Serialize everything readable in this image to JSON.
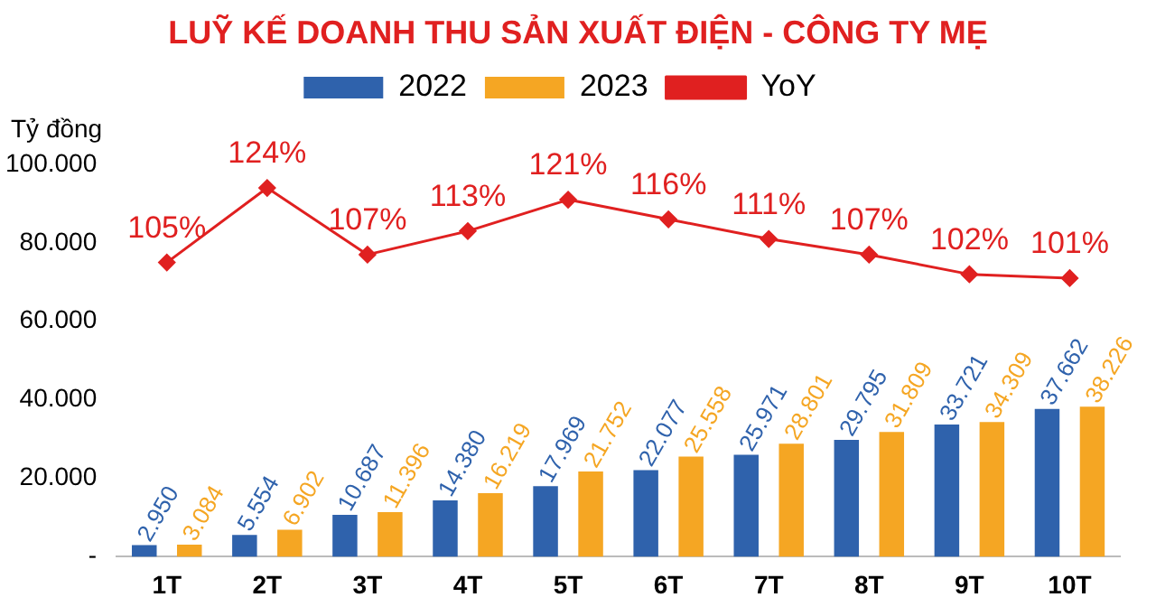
{
  "chart_data": {
    "type": "bar",
    "title": "LUỸ KẾ DOANH THU SẢN XUẤT ĐIỆN - CÔNG TY MẸ",
    "ylabel": "Tỷ đồng",
    "categories": [
      "1T",
      "2T",
      "3T",
      "4T",
      "5T",
      "6T",
      "7T",
      "8T",
      "9T",
      "10T"
    ],
    "series": [
      {
        "name": "2022",
        "color": "#2f62ac",
        "values": [
          2950,
          5554,
          10687,
          14380,
          17969,
          22077,
          25971,
          29795,
          33721,
          37662
        ],
        "value_labels": [
          "2.950",
          "5.554",
          "10.687",
          "14.380",
          "17.969",
          "22.077",
          "25.971",
          "29.795",
          "33.721",
          "37.662"
        ]
      },
      {
        "name": "2023",
        "color": "#f5a623",
        "values": [
          3084,
          6902,
          11396,
          16219,
          21752,
          25558,
          28801,
          31809,
          34309,
          38226
        ],
        "value_labels": [
          "3.084",
          "6.902",
          "11.396",
          "16.219",
          "21.752",
          "25.558",
          "28.801",
          "31.809",
          "34.309",
          "38.226"
        ]
      },
      {
        "name": "YoY",
        "type": "line",
        "axis": "y2",
        "color": "#e02020",
        "marker": "diamond",
        "values": [
          105,
          124,
          107,
          113,
          121,
          116,
          111,
          107,
          102,
          101
        ],
        "value_labels": [
          "105%",
          "124%",
          "107%",
          "113%",
          "121%",
          "116%",
          "111%",
          "107%",
          "102%",
          "101%"
        ]
      }
    ],
    "ylim": [
      0,
      100000
    ],
    "yticks": [
      {
        "value": 0,
        "label": "-"
      },
      {
        "value": 20000,
        "label": "20.000"
      },
      {
        "value": 40000,
        "label": "40.000"
      },
      {
        "value": 60000,
        "label": "60.000"
      },
      {
        "value": 80000,
        "label": "80.000"
      },
      {
        "value": 100000,
        "label": "100.000"
      }
    ],
    "grid": false,
    "legend": "top"
  }
}
